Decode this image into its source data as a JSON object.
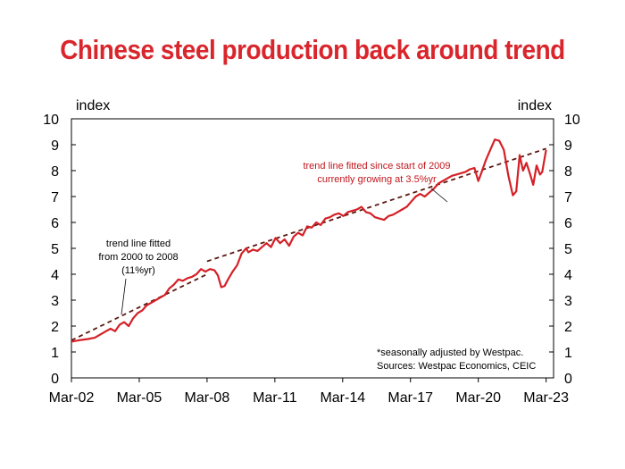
{
  "title": "Chinese steel production back around trend",
  "colors": {
    "title": "#d9262c",
    "series": "#d42027",
    "trend": "#5a1a12",
    "frame": "#000000"
  },
  "chart_data": {
    "type": "line",
    "title": "Chinese steel production back around trend",
    "ylabel_left": "index",
    "ylabel_right": "index",
    "ylim": [
      0,
      10
    ],
    "yticks": [
      "0",
      "1",
      "2",
      "3",
      "4",
      "5",
      "6",
      "7",
      "8",
      "9",
      "10"
    ],
    "xlim": [
      2002.17,
      2023.5
    ],
    "xticks": [
      {
        "label": "Mar-02",
        "value": 2002.17
      },
      {
        "label": "Mar-05",
        "value": 2005.17
      },
      {
        "label": "Mar-08",
        "value": 2008.17
      },
      {
        "label": "Mar-11",
        "value": 2011.17
      },
      {
        "label": "Mar-14",
        "value": 2014.17
      },
      {
        "label": "Mar-17",
        "value": 2017.17
      },
      {
        "label": "Mar-20",
        "value": 2020.17
      },
      {
        "label": "Mar-23",
        "value": 2023.17
      }
    ],
    "series": [
      {
        "x": [
          2002.17,
          2002.5,
          2002.9,
          2003.2,
          2003.5,
          2003.7,
          2003.9,
          2004.1,
          2004.3,
          2004.5,
          2004.7,
          2004.9,
          2005.1,
          2005.3,
          2005.5,
          2005.7,
          2005.9,
          2006.1,
          2006.3,
          2006.5,
          2006.7,
          2006.9,
          2007.1,
          2007.3,
          2007.5,
          2007.7,
          2007.9,
          2008.1,
          2008.3,
          2008.5,
          2008.65,
          2008.8,
          2008.95,
          2009.1,
          2009.3,
          2009.5,
          2009.7,
          2009.9,
          2010.0,
          2010.2,
          2010.4,
          2010.6,
          2010.8,
          2011.0,
          2011.2,
          2011.4,
          2011.6,
          2011.8,
          2012.0,
          2012.2,
          2012.4,
          2012.6,
          2012.8,
          2013.0,
          2013.2,
          2013.4,
          2013.6,
          2013.8,
          2014.0,
          2014.2,
          2014.4,
          2014.6,
          2014.8,
          2015.0,
          2015.2,
          2015.4,
          2015.6,
          2015.8,
          2016.0,
          2016.2,
          2016.4,
          2016.6,
          2016.8,
          2017.0,
          2017.2,
          2017.4,
          2017.6,
          2017.8,
          2018.0,
          2018.2,
          2018.4,
          2018.6,
          2018.8,
          2019.0,
          2019.2,
          2019.4,
          2019.6,
          2019.8,
          2020.0,
          2020.17,
          2020.3,
          2020.5,
          2020.7,
          2020.9,
          2021.1,
          2021.3,
          2021.5,
          2021.7,
          2021.85,
          2022.0,
          2022.15,
          2022.3,
          2022.45,
          2022.6,
          2022.75,
          2022.9,
          2023.0,
          2023.17
        ],
        "values": [
          1.4,
          1.45,
          1.5,
          1.55,
          1.7,
          1.8,
          1.9,
          1.8,
          2.05,
          2.15,
          2.0,
          2.3,
          2.5,
          2.6,
          2.8,
          2.9,
          3.0,
          3.1,
          3.2,
          3.45,
          3.6,
          3.8,
          3.75,
          3.85,
          3.9,
          4.0,
          4.2,
          4.1,
          4.2,
          4.15,
          3.95,
          3.5,
          3.55,
          3.8,
          4.1,
          4.35,
          4.8,
          5.0,
          4.85,
          4.95,
          4.9,
          5.05,
          5.2,
          5.05,
          5.4,
          5.2,
          5.35,
          5.1,
          5.45,
          5.6,
          5.5,
          5.85,
          5.8,
          6.0,
          5.9,
          6.15,
          6.2,
          6.3,
          6.35,
          6.25,
          6.4,
          6.45,
          6.5,
          6.6,
          6.4,
          6.35,
          6.2,
          6.15,
          6.1,
          6.25,
          6.3,
          6.4,
          6.5,
          6.6,
          6.8,
          7.0,
          7.1,
          7.0,
          7.15,
          7.3,
          7.5,
          7.6,
          7.7,
          7.8,
          7.85,
          7.9,
          7.95,
          8.05,
          8.1,
          7.6,
          7.9,
          8.4,
          8.8,
          9.2,
          9.15,
          8.8,
          7.8,
          7.05,
          7.2,
          8.6,
          8.0,
          8.3,
          7.9,
          7.45,
          8.2,
          7.85,
          7.95,
          8.8
        ]
      }
    ],
    "trend_lines": [
      {
        "x": [
          2002.17,
          2008.17
        ],
        "values": [
          1.45,
          4.0
        ]
      },
      {
        "x": [
          2008.17,
          2023.17
        ],
        "values": [
          4.5,
          8.85
        ]
      }
    ],
    "annotations": {
      "left": [
        "trend line fitted",
        "from 2000 to 2008",
        "(11%yr)"
      ],
      "right": [
        "trend line fitted since start of 2009",
        "currently growing at 3.5%yr"
      ],
      "notes": [
        "*seasonally adjusted by Westpac.",
        "Sources: Westpac Economics, CEIC"
      ]
    },
    "grid": false
  }
}
